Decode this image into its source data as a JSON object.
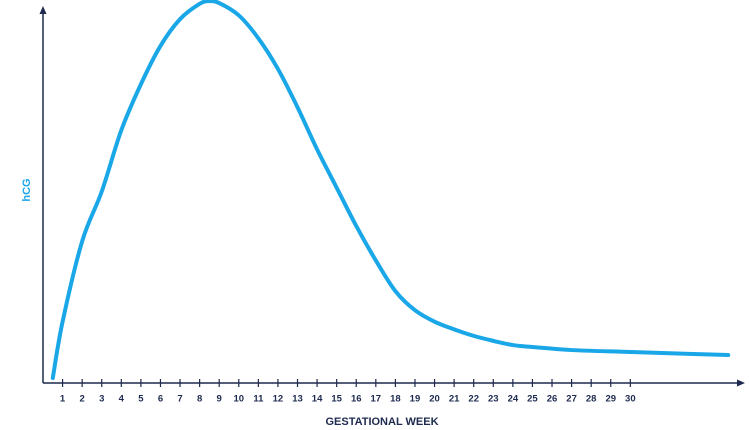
{
  "chart_data": {
    "type": "line",
    "y_label": "hCG",
    "x_label": "GESTATIONAL WEEK",
    "x": [
      0.5,
      1,
      2,
      3,
      4,
      5,
      6,
      7,
      8,
      8.5,
      9,
      10,
      11,
      12,
      13,
      14,
      15,
      16,
      17,
      18,
      19,
      20,
      21,
      22,
      23,
      24,
      25,
      27,
      30,
      33,
      35
    ],
    "series": [
      {
        "name": "hCG",
        "color": "#1aa7e8",
        "values": [
          1.3,
          16,
          37,
          50,
          66,
          78,
          88,
          95,
          99,
          99.7,
          99.2,
          96,
          90,
          82,
          72,
          61,
          51,
          41,
          32,
          24,
          19,
          16,
          14,
          12.3,
          11,
          9.9,
          9.4,
          8.6,
          8.1,
          7.6,
          7.3
        ]
      }
    ],
    "xlim": [
      0,
      35.5
    ],
    "ylim": [
      0,
      100
    ],
    "xticks": [
      1,
      2,
      3,
      4,
      5,
      6,
      7,
      8,
      9,
      10,
      11,
      12,
      13,
      14,
      15,
      16,
      17,
      18,
      19,
      20,
      21,
      22,
      23,
      24,
      25,
      26,
      27,
      28,
      29,
      30
    ],
    "axis_color": "#1e2a4f"
  }
}
